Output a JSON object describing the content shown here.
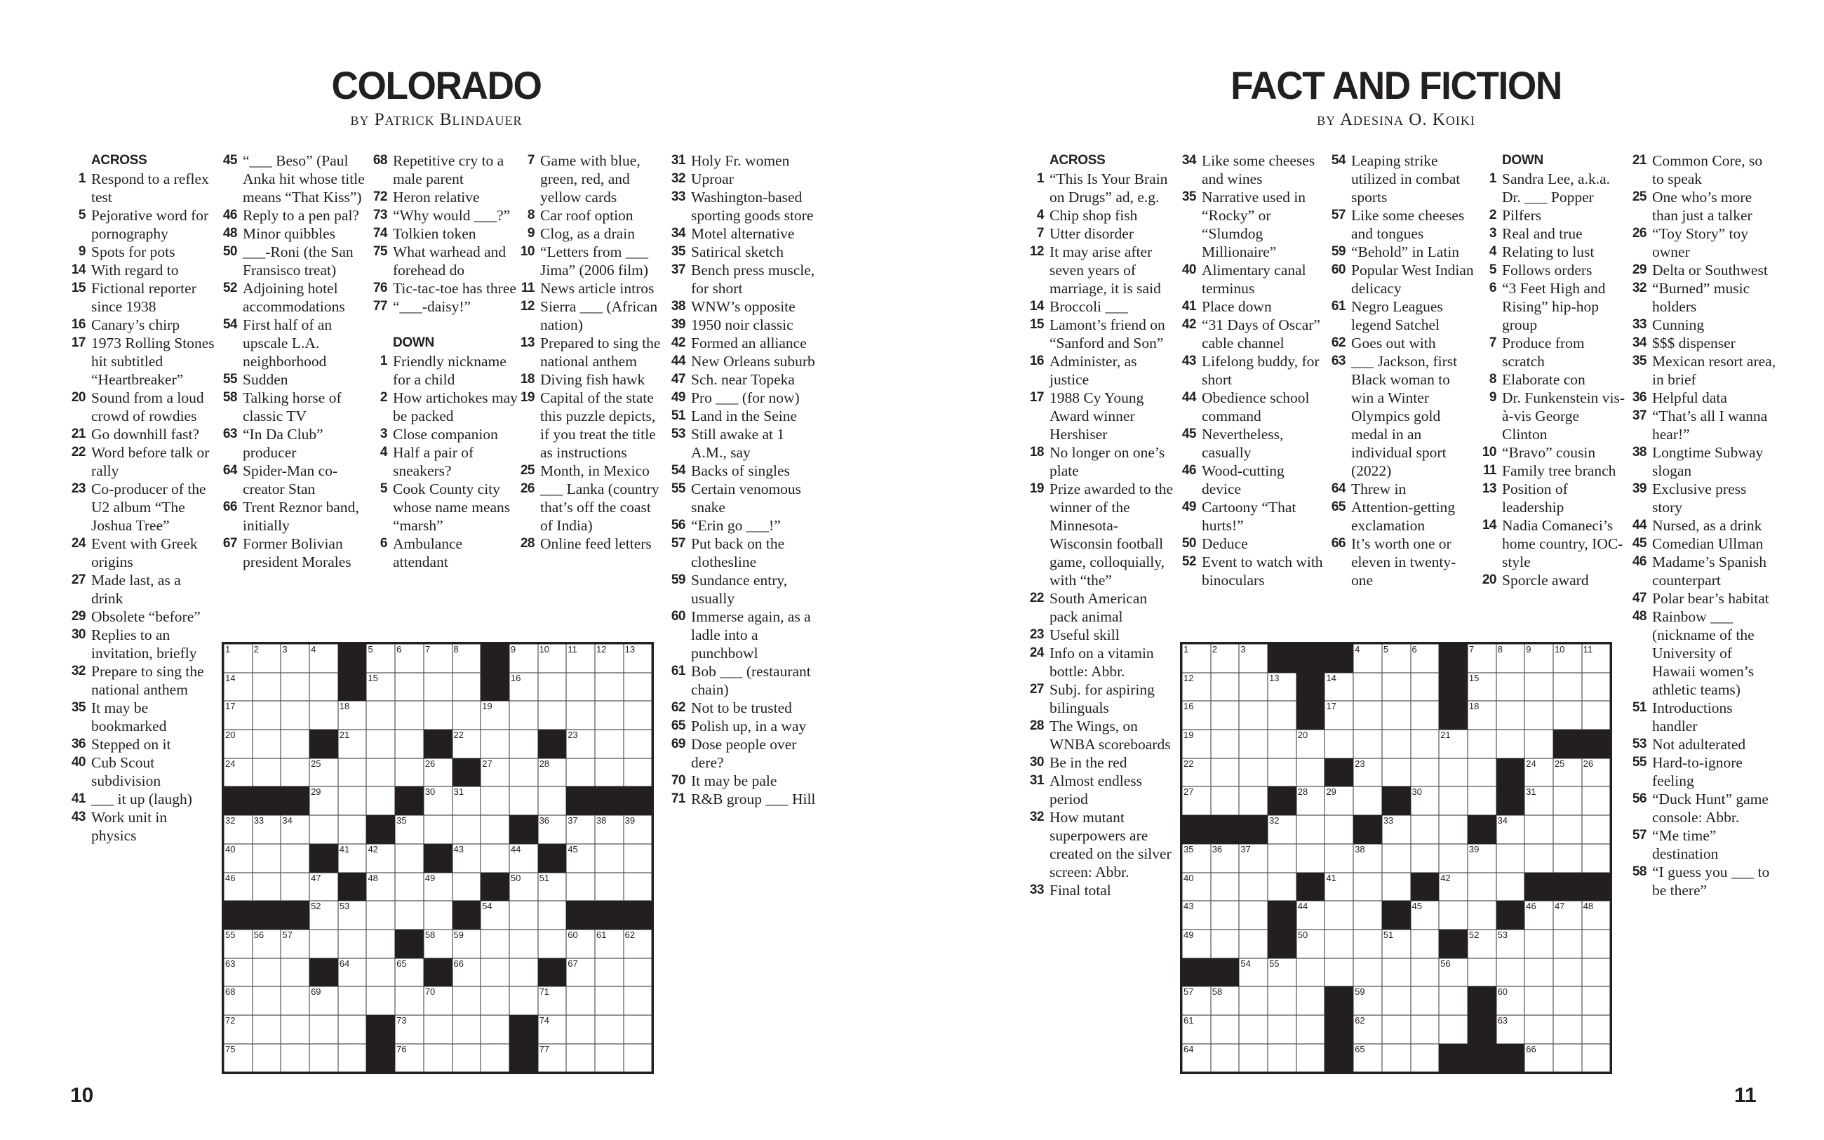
{
  "pages": [
    {
      "title": "COLORADO",
      "byline": "by Patrick Blindauer",
      "page_number": "10",
      "grid": [
        "....#....#.....",
        "....#....#.....",
        "...............",
        "...#...#...#...",
        "........#......",
        "###...#.....###",
        ".....#....#....",
        "...#...#...#...",
        "....#....#.....",
        "###.....#...###",
        "......#........",
        "...#...#...#...",
        "...............",
        ".....#....#....",
        ".....#....#...."
      ],
      "columns": [
        [
          {
            "header": "ACROSS"
          },
          {
            "n": "1",
            "text": "Respond to a reflex test"
          },
          {
            "n": "5",
            "text": "Pejorative word for pornography"
          },
          {
            "n": "9",
            "text": "Spots for pots"
          },
          {
            "n": "14",
            "text": "With regard to"
          },
          {
            "n": "15",
            "text": "Fictional reporter since 1938"
          },
          {
            "n": "16",
            "text": "Canary’s chirp"
          },
          {
            "n": "17",
            "text": "1973 Rolling Stones hit subtitled “Heartbreaker”"
          },
          {
            "n": "20",
            "text": "Sound from a loud crowd of rowdies"
          },
          {
            "n": "21",
            "text": "Go downhill fast?"
          },
          {
            "n": "22",
            "text": "Word before talk or rally"
          },
          {
            "n": "23",
            "text": "Co-producer of the U2 album “The Joshua Tree”"
          },
          {
            "n": "24",
            "text": "Event with Greek origins"
          },
          {
            "n": "27",
            "text": "Made last, as a drink"
          },
          {
            "n": "29",
            "text": "Obsolete “before”"
          },
          {
            "n": "30",
            "text": "Replies to an invitation, briefly"
          },
          {
            "n": "32",
            "text": "Prepare to sing the national anthem"
          },
          {
            "n": "35",
            "text": "It may be bookmarked"
          },
          {
            "n": "36",
            "text": "Stepped on it"
          },
          {
            "n": "40",
            "text": "Cub Scout subdivision"
          },
          {
            "n": "41",
            "text": "___ it up (laugh)"
          },
          {
            "n": "43",
            "text": "Work unit in physics"
          }
        ],
        [
          {
            "n": "45",
            "text": "“___ Beso” (Paul Anka hit whose title means “That Kiss”)"
          },
          {
            "n": "46",
            "text": "Reply to a pen pal?"
          },
          {
            "n": "48",
            "text": "Minor quibbles"
          },
          {
            "n": "50",
            "text": "___-Roni (the San Fransisco treat)"
          },
          {
            "n": "52",
            "text": "Adjoining hotel accommodations"
          },
          {
            "n": "54",
            "text": "First half of an upscale L.A. neighborhood"
          },
          {
            "n": "55",
            "text": "Sudden"
          },
          {
            "n": "58",
            "text": "Talking horse of classic TV"
          },
          {
            "n": "63",
            "text": "“In Da Club” producer"
          },
          {
            "n": "64",
            "text": "Spider-Man co-creator Stan"
          },
          {
            "n": "66",
            "text": "Trent Reznor band, initially"
          },
          {
            "n": "67",
            "text": "Former Bolivian president Morales"
          }
        ],
        [
          {
            "n": "68",
            "text": "Repetitive cry to a male parent"
          },
          {
            "n": "72",
            "text": "Heron relative"
          },
          {
            "n": "73",
            "text": "“Why would ___?”"
          },
          {
            "n": "74",
            "text": "Tolkien token"
          },
          {
            "n": "75",
            "text": "What warhead and forehead do"
          },
          {
            "n": "76",
            "text": "Tic-tac-toe has three"
          },
          {
            "n": "77",
            "text": "“___-daisy!”"
          },
          {
            "header": "DOWN"
          },
          {
            "n": "1",
            "text": "Friendly nickname for a child"
          },
          {
            "n": "2",
            "text": "How artichokes may be packed"
          },
          {
            "n": "3",
            "text": "Close companion"
          },
          {
            "n": "4",
            "text": "Half a pair of sneakers?"
          },
          {
            "n": "5",
            "text": "Cook County city whose name means “marsh”"
          },
          {
            "n": "6",
            "text": "Ambulance attendant"
          }
        ],
        [
          {
            "n": "7",
            "text": "Game with blue, green, red, and yellow cards"
          },
          {
            "n": "8",
            "text": "Car roof option"
          },
          {
            "n": "9",
            "text": "Clog, as a drain"
          },
          {
            "n": "10",
            "text": "“Letters from ___ Jima” (2006 film)"
          },
          {
            "n": "11",
            "text": "News article intros"
          },
          {
            "n": "12",
            "text": "Sierra ___ (African nation)"
          },
          {
            "n": "13",
            "text": "Prepared to sing the national anthem"
          },
          {
            "n": "18",
            "text": "Diving fish hawk"
          },
          {
            "n": "19",
            "text": "Capital of the state this puzzle depicts, if you treat the title as instructions"
          },
          {
            "n": "25",
            "text": "Month, in Mexico"
          },
          {
            "n": "26",
            "text": "___ Lanka (country that’s off the coast of India)"
          },
          {
            "n": "28",
            "text": "Online feed letters"
          }
        ],
        [
          {
            "n": "31",
            "text": "Holy Fr. women"
          },
          {
            "n": "32",
            "text": "Uproar"
          },
          {
            "n": "33",
            "text": "Washington-based sporting goods store"
          },
          {
            "n": "34",
            "text": "Motel alternative"
          },
          {
            "n": "35",
            "text": "Satirical sketch"
          },
          {
            "n": "37",
            "text": "Bench press muscle, for short"
          },
          {
            "n": "38",
            "text": "WNW’s opposite"
          },
          {
            "n": "39",
            "text": "1950 noir classic"
          },
          {
            "n": "42",
            "text": "Formed an alliance"
          },
          {
            "n": "44",
            "text": "New Orleans suburb"
          },
          {
            "n": "47",
            "text": "Sch. near Topeka"
          },
          {
            "n": "49",
            "text": "Pro ___ (for now)"
          },
          {
            "n": "51",
            "text": "Land in the Seine"
          },
          {
            "n": "53",
            "text": "Still awake at 1 A.M., say"
          },
          {
            "n": "54",
            "text": "Backs of singles"
          },
          {
            "n": "55",
            "text": "Certain venomous snake"
          },
          {
            "n": "56",
            "text": "“Erin go ___!”"
          },
          {
            "n": "57",
            "text": "Put back on the clothesline"
          },
          {
            "n": "59",
            "text": "Sundance entry, usually"
          },
          {
            "n": "60",
            "text": "Immerse again, as a ladle into a punchbowl"
          },
          {
            "n": "61",
            "text": "Bob ___ (restaurant chain)"
          },
          {
            "n": "62",
            "text": "Not to be trusted"
          },
          {
            "n": "65",
            "text": "Polish up, in a way"
          },
          {
            "n": "69",
            "text": "Dose people over dere?"
          },
          {
            "n": "70",
            "text": "It may be pale"
          },
          {
            "n": "71",
            "text": "R&B group ___ Hill"
          }
        ]
      ]
    },
    {
      "title": "FACT AND FICTION",
      "byline": "by Adesina O. Koiki",
      "page_number": "11",
      "grid": [
        "...###...#.....",
        "....#....#.....",
        "....#....#.....",
        ".............##",
        ".....#.....#...",
        "...#...#...#...",
        "###...#...#....",
        "...............",
        "....#...#...###",
        "...#...#...#...",
        "...#.....#.....",
        "##.............",
        ".....#....#....",
        ".....#....#....",
        ".....#...###..."
      ],
      "columns": [
        [
          {
            "header": "ACROSS"
          },
          {
            "n": "1",
            "text": "“This Is Your Brain on Drugs” ad, e.g."
          },
          {
            "n": "4",
            "text": "Chip shop fish"
          },
          {
            "n": "7",
            "text": "Utter disorder"
          },
          {
            "n": "12",
            "text": "It may arise after seven years of marriage, it is said"
          },
          {
            "n": "14",
            "text": "Broccoli ___"
          },
          {
            "n": "15",
            "text": "Lamont’s friend on “Sanford and Son”"
          },
          {
            "n": "16",
            "text": "Administer, as justice"
          },
          {
            "n": "17",
            "text": "1988 Cy Young Award winner Hershiser"
          },
          {
            "n": "18",
            "text": "No longer on one’s plate"
          },
          {
            "n": "19",
            "text": "Prize awarded to the winner of the Minnesota-Wisconsin football game, colloquially, with “the”"
          },
          {
            "n": "22",
            "text": "South American pack animal"
          },
          {
            "n": "23",
            "text": "Useful skill"
          },
          {
            "n": "24",
            "text": "Info on a vitamin bottle: Abbr."
          },
          {
            "n": "27",
            "text": "Subj. for aspiring bilinguals"
          },
          {
            "n": "28",
            "text": "The Wings, on WNBA scoreboards"
          },
          {
            "n": "30",
            "text": "Be in the red"
          },
          {
            "n": "31",
            "text": "Almost endless period"
          },
          {
            "n": "32",
            "text": "How mutant superpowers are created on the silver screen: Abbr."
          },
          {
            "n": "33",
            "text": "Final total"
          }
        ],
        [
          {
            "n": "34",
            "text": "Like some cheeses and wines"
          },
          {
            "n": "35",
            "text": "Narrative used in “Rocky” or “Slumdog Millionaire”"
          },
          {
            "n": "40",
            "text": "Alimentary canal terminus"
          },
          {
            "n": "41",
            "text": "Place down"
          },
          {
            "n": "42",
            "text": "“31 Days of Oscar” cable channel"
          },
          {
            "n": "43",
            "text": "Lifelong buddy, for short"
          },
          {
            "n": "44",
            "text": "Obedience school command"
          },
          {
            "n": "45",
            "text": "Nevertheless, casually"
          },
          {
            "n": "46",
            "text": "Wood-cutting device"
          },
          {
            "n": "49",
            "text": "Cartoony “That hurts!”"
          },
          {
            "n": "50",
            "text": "Deduce"
          },
          {
            "n": "52",
            "text": "Event to watch with binoculars"
          }
        ],
        [
          {
            "n": "54",
            "text": "Leaping strike utilized in combat sports"
          },
          {
            "n": "57",
            "text": "Like some cheeses and tongues"
          },
          {
            "n": "59",
            "text": "“Behold” in Latin"
          },
          {
            "n": "60",
            "text": "Popular West Indian delicacy"
          },
          {
            "n": "61",
            "text": "Negro Leagues legend Satchel"
          },
          {
            "n": "62",
            "text": "Goes out with"
          },
          {
            "n": "63",
            "text": "___ Jackson, first Black woman to win a Winter Olympics gold medal in an individual sport (2022)"
          },
          {
            "n": "64",
            "text": "Threw in"
          },
          {
            "n": "65",
            "text": "Attention-getting exclamation"
          },
          {
            "n": "66",
            "text": "It’s worth one or eleven in twenty-one"
          }
        ],
        [
          {
            "header": "DOWN"
          },
          {
            "n": "1",
            "text": "Sandra Lee, a.k.a. Dr. ___ Popper"
          },
          {
            "n": "2",
            "text": "Pilfers"
          },
          {
            "n": "3",
            "text": "Real and true"
          },
          {
            "n": "4",
            "text": "Relating to lust"
          },
          {
            "n": "5",
            "text": "Follows orders"
          },
          {
            "n": "6",
            "text": "“3 Feet High and Rising” hip-hop group"
          },
          {
            "n": "7",
            "text": "Produce from scratch"
          },
          {
            "n": "8",
            "text": "Elaborate con"
          },
          {
            "n": "9",
            "text": "Dr. Funkenstein vis-à-vis George Clinton"
          },
          {
            "n": "10",
            "text": "“Bravo” cousin"
          },
          {
            "n": "11",
            "text": "Family tree branch"
          },
          {
            "n": "13",
            "text": "Position of leadership"
          },
          {
            "n": "14",
            "text": "Nadia Comaneci’s home country, IOC-style"
          },
          {
            "n": "20",
            "text": "Sporcle award"
          }
        ],
        [
          {
            "n": "21",
            "text": "Common Core, so to speak"
          },
          {
            "n": "25",
            "text": "One who’s more than just a talker"
          },
          {
            "n": "26",
            "text": "“Toy Story” toy owner"
          },
          {
            "n": "29",
            "text": "Delta or Southwest"
          },
          {
            "n": "32",
            "text": "“Burned” music holders"
          },
          {
            "n": "33",
            "text": "Cunning"
          },
          {
            "n": "34",
            "text": "$$$ dispenser"
          },
          {
            "n": "35",
            "text": "Mexican resort area, in brief"
          },
          {
            "n": "36",
            "text": "Helpful data"
          },
          {
            "n": "37",
            "text": "“That’s all I wanna hear!”"
          },
          {
            "n": "38",
            "text": "Longtime Subway slogan"
          },
          {
            "n": "39",
            "text": "Exclusive press story"
          },
          {
            "n": "44",
            "text": "Nursed, as a drink"
          },
          {
            "n": "45",
            "text": "Comedian Ullman"
          },
          {
            "n": "46",
            "text": "Madame’s Spanish counterpart"
          },
          {
            "n": "47",
            "text": "Polar bear’s habitat"
          },
          {
            "n": "48",
            "text": "Rainbow ___ (nickname of the University of Hawaii women’s athletic teams)"
          },
          {
            "n": "51",
            "text": "Introductions handler"
          },
          {
            "n": "53",
            "text": "Not adulterated"
          },
          {
            "n": "55",
            "text": "Hard-to-ignore feeling"
          },
          {
            "n": "56",
            "text": "“Duck Hunt” game console: Abbr."
          },
          {
            "n": "57",
            "text": "“Me time” destination"
          },
          {
            "n": "58",
            "text": "“I guess you ___ to be there”"
          }
        ]
      ]
    }
  ],
  "colors": {
    "ink": "#231f20",
    "paper": "#ffffff"
  }
}
